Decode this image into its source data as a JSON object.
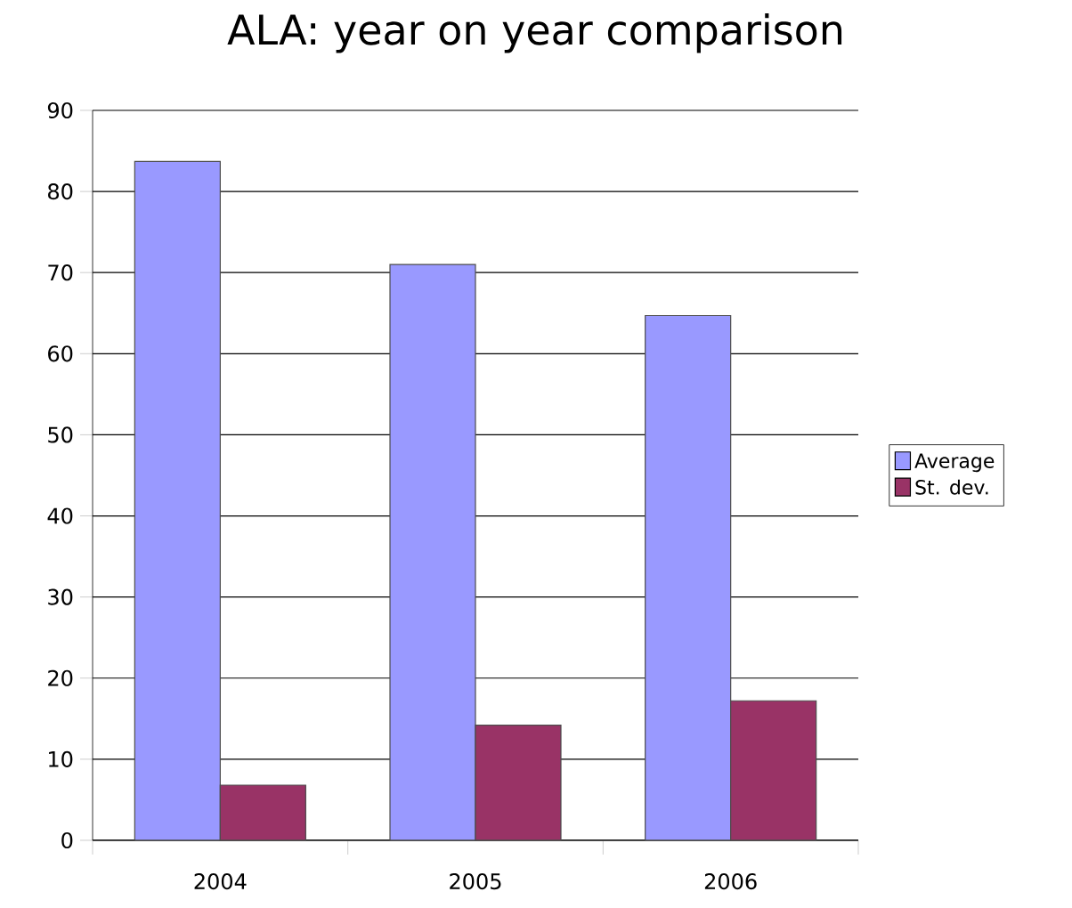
{
  "chart_data": {
    "type": "bar",
    "title": "ALA: year on year comparison",
    "categories": [
      "2004",
      "2005",
      "2006"
    ],
    "series": [
      {
        "name": "Average",
        "color": "#9999ff",
        "values": [
          83.7,
          71.0,
          64.7
        ]
      },
      {
        "name": "St. dev.",
        "color": "#993366",
        "values": [
          6.8,
          14.2,
          17.2
        ]
      }
    ],
    "ylim": [
      0,
      90
    ],
    "yticks": [
      0,
      10,
      20,
      30,
      40,
      50,
      60,
      70,
      80,
      90
    ],
    "grid": "y",
    "legend": "right"
  }
}
